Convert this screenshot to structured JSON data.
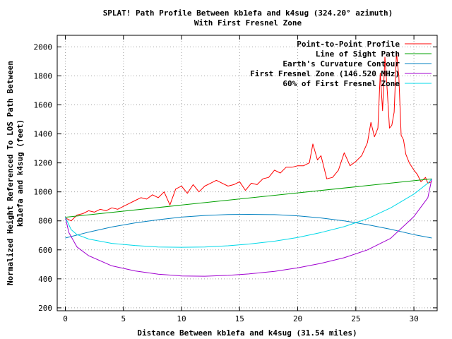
{
  "chart_data": {
    "type": "line",
    "title": "SPLAT! Path Profile Between kb1efa and k4sug (324.20° azimuth)",
    "subtitle": "With First Fresnel Zone",
    "xlabel": "Distance Between kb1efa and k4sug (31.54 miles)",
    "ylabel_line1": "Normalized Height Referenced To LOS Path Between",
    "ylabel_line2": "kb1efa and k4sug (feet)",
    "xlim": [
      -0.7,
      32.0
    ],
    "ylim": [
      180,
      2080
    ],
    "xticks": [
      0,
      5,
      10,
      15,
      20,
      25,
      30
    ],
    "yticks": [
      200,
      400,
      600,
      800,
      1000,
      1200,
      1400,
      1600,
      1800,
      2000
    ],
    "grid": true,
    "legend_position": "top-right",
    "path_length_miles": 31.54,
    "series": [
      {
        "name": "Point-to-Point Profile",
        "color": "#ff0000",
        "x": [
          0,
          0.5,
          1,
          1.5,
          2,
          2.5,
          3,
          3.5,
          4,
          4.5,
          5,
          5.5,
          6,
          6.5,
          7,
          7.5,
          8,
          8.5,
          9,
          9.5,
          10,
          10.5,
          11,
          11.5,
          12,
          12.5,
          13,
          13.5,
          14,
          14.5,
          15,
          15.5,
          16,
          16.5,
          17,
          17.5,
          18,
          18.5,
          19,
          19.5,
          20,
          20.5,
          21,
          21.3,
          21.7,
          22,
          22.5,
          23,
          23.5,
          24,
          24.5,
          25,
          25.5,
          26,
          26.3,
          26.6,
          26.9,
          27.1,
          27.3,
          27.5,
          27.7,
          27.9,
          28.1,
          28.3,
          28.5,
          28.7,
          28.9,
          29.1,
          29.3,
          29.6,
          30,
          30.3,
          30.6,
          31,
          31.2,
          31.54
        ],
        "values": [
          820,
          800,
          840,
          850,
          870,
          860,
          880,
          870,
          890,
          880,
          900,
          920,
          940,
          960,
          950,
          980,
          960,
          1000,
          910,
          1020,
          1040,
          990,
          1050,
          1000,
          1040,
          1060,
          1080,
          1060,
          1040,
          1050,
          1070,
          1010,
          1060,
          1050,
          1090,
          1100,
          1150,
          1130,
          1170,
          1170,
          1180,
          1180,
          1200,
          1330,
          1220,
          1250,
          1090,
          1100,
          1150,
          1270,
          1180,
          1210,
          1250,
          1340,
          1480,
          1380,
          1440,
          1820,
          1560,
          1930,
          1700,
          1440,
          1460,
          1550,
          1960,
          1800,
          1390,
          1360,
          1260,
          1200,
          1150,
          1120,
          1070,
          1100,
          1060,
          1070
        ]
      },
      {
        "name": "Line of Sight Path",
        "color": "#00a000",
        "x": [
          0,
          31.54
        ],
        "values": [
          825,
          1090
        ]
      },
      {
        "name": "Earth's Curvature Contour",
        "color": "#0080c0",
        "x": [
          0,
          2,
          4,
          6,
          8,
          10,
          12,
          14,
          15.77,
          18,
          20,
          22,
          24,
          26,
          28,
          30,
          31.54
        ],
        "values": [
          682,
          722,
          758,
          786,
          808,
          826,
          837,
          844,
          845,
          843,
          835,
          820,
          800,
          774,
          742,
          705,
          682
        ]
      },
      {
        "name": "First Fresnel Zone (146.520 MHz)",
        "color": "#a000d0",
        "x": [
          0,
          0.3,
          1,
          2,
          4,
          6,
          8,
          10,
          12,
          14,
          15.77,
          18,
          20,
          22,
          24,
          26,
          28,
          30,
          31.2,
          31.54
        ],
        "values": [
          825,
          720,
          620,
          560,
          490,
          455,
          432,
          420,
          418,
          424,
          434,
          452,
          476,
          507,
          546,
          600,
          680,
          830,
          960,
          1090
        ]
      },
      {
        "name": "60% of First Fresnel Zone",
        "color": "#00d8e8",
        "x": [
          0,
          0.5,
          1,
          2,
          4,
          6,
          8,
          10,
          12,
          14,
          15.77,
          18,
          20,
          22,
          24,
          26,
          28,
          30,
          31.2,
          31.54
        ],
        "values": [
          825,
          740,
          705,
          675,
          645,
          630,
          620,
          618,
          620,
          628,
          640,
          660,
          685,
          720,
          760,
          815,
          890,
          985,
          1060,
          1090
        ]
      }
    ]
  }
}
